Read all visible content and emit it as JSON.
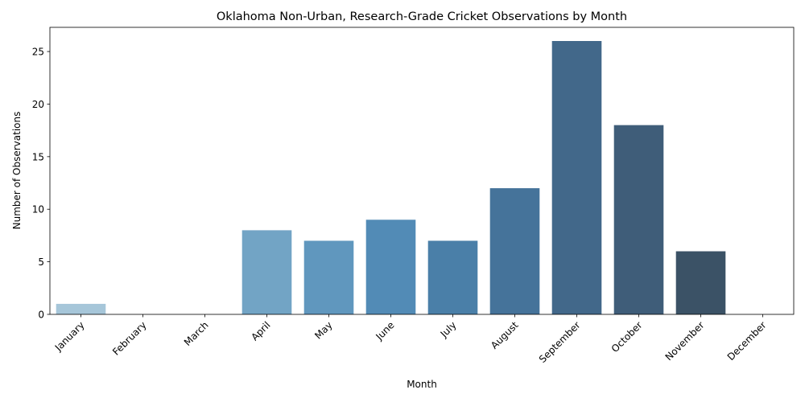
{
  "chart_data": {
    "type": "bar",
    "title": "Oklahoma Non-Urban, Research-Grade Cricket Observations by Month",
    "xlabel": "Month",
    "ylabel": "Number of Observations",
    "categories": [
      "January",
      "February",
      "March",
      "April",
      "May",
      "June",
      "July",
      "August",
      "September",
      "October",
      "November",
      "December"
    ],
    "values": [
      1,
      0,
      0,
      8,
      7,
      9,
      7,
      12,
      26,
      18,
      6,
      0
    ],
    "colors": [
      "#a6c6d9",
      "#96bbd3",
      "#86b0cd",
      "#72a4c5",
      "#6097be",
      "#528bb6",
      "#4a7fa8",
      "#45739a",
      "#42688a",
      "#3f5d79",
      "#3b5266",
      "#384754"
    ],
    "yticks": [
      0,
      5,
      10,
      15,
      20,
      25
    ],
    "ylim": [
      0,
      27.3
    ],
    "grid": false,
    "legend": "none"
  }
}
